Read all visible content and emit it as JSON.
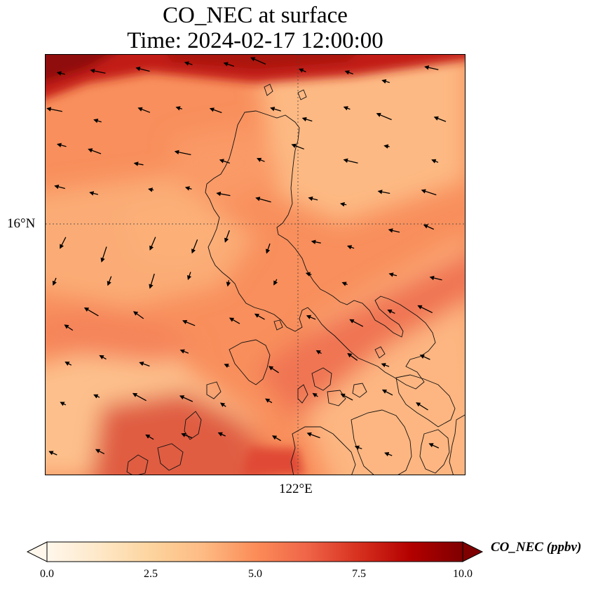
{
  "title": {
    "line1": "CO_NEC at surface",
    "line2": "Time: 2024-02-17 12:00:00"
  },
  "map": {
    "lat_label": "16°N",
    "lon_label": "122°E",
    "colormap": [
      "#fff7ec",
      "#fee8c8",
      "#fdd49e",
      "#fdbb84",
      "#fc8d59",
      "#ef6548",
      "#d7301f",
      "#b30000",
      "#7f0000"
    ]
  },
  "colorbar": {
    "label": "CO_NEC (ppbv)",
    "ticks": [
      "0.0",
      "2.5",
      "5.0",
      "7.5",
      "10.0"
    ]
  }
}
